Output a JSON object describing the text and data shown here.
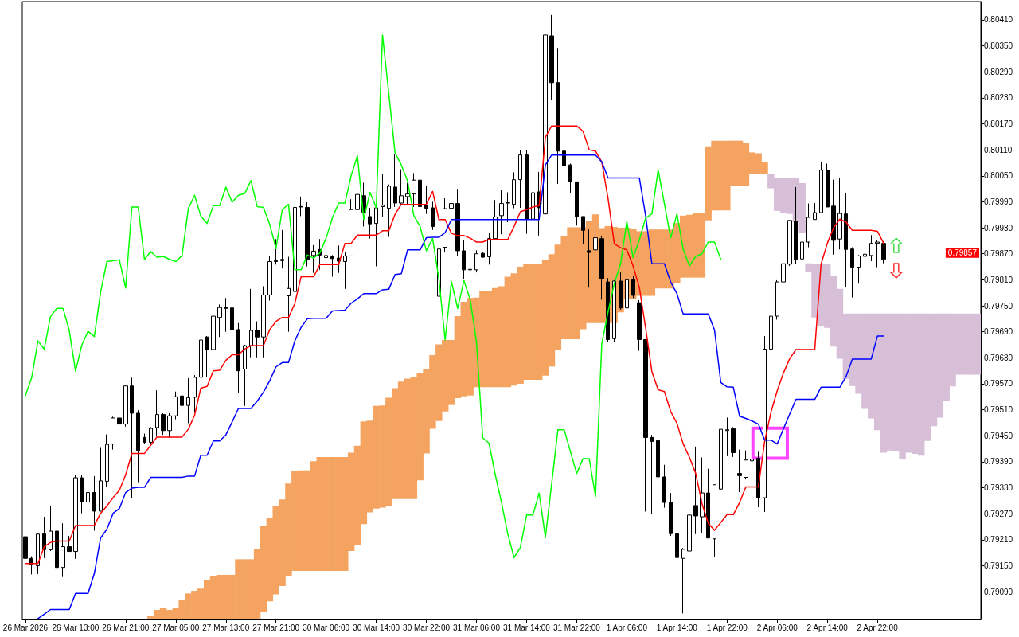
{
  "chart_data": {
    "type": "candlestick",
    "categories": [
      "26 Mar 2026",
      null,
      null,
      null,
      null,
      null,
      null,
      null,
      "26 Mar 13:00",
      null,
      null,
      null,
      null,
      null,
      null,
      null,
      "26 Mar 21:00",
      null,
      null,
      null,
      null,
      null,
      null,
      null,
      "27 Mar 05:00",
      null,
      null,
      null,
      null,
      null,
      null,
      null,
      "27 Mar 13:00",
      null,
      null,
      null,
      null,
      null,
      null,
      null,
      "27 Mar 21:00",
      null,
      null,
      null,
      null,
      null,
      null,
      null,
      "30 Mar 06:00",
      null,
      null,
      null,
      null,
      null,
      null,
      null,
      "30 Mar 14:00",
      null,
      null,
      null,
      null,
      null,
      null,
      null,
      "30 Mar 22:00",
      null,
      null,
      null,
      null,
      null,
      null,
      null,
      "31 Mar 06:00",
      null,
      null,
      null,
      null,
      null,
      null,
      null,
      "31 Mar 14:00",
      null,
      null,
      null,
      null,
      null,
      null,
      null,
      "31 Mar 22:00",
      null,
      null,
      null,
      null,
      null,
      null,
      null,
      "1 Apr 06:00",
      null,
      null,
      null,
      null,
      null,
      null,
      null,
      "1 Apr 14:00",
      null,
      null,
      null,
      null,
      null,
      null,
      null,
      "1 Apr 22:00",
      null,
      null,
      null,
      null,
      null,
      null,
      null,
      "2 Apr 06:00",
      null,
      null,
      null,
      null,
      null,
      null,
      null,
      "2 Apr 14:00",
      null,
      null,
      null,
      null,
      null,
      null,
      null,
      "2 Apr 22:00",
      null,
      null,
      null,
      null,
      null,
      null,
      null,
      null,
      null,
      null,
      null,
      null,
      null,
      null,
      null,
      null
    ],
    "ohlc": [
      [
        0.79217,
        0.7922,
        0.79158,
        0.79167
      ],
      [
        0.79167,
        0.79172,
        0.7913,
        0.79152
      ],
      [
        0.7915,
        0.79224,
        0.79131,
        0.79223
      ],
      [
        0.79224,
        0.79263,
        0.79168,
        0.79187
      ],
      [
        0.79187,
        0.79287,
        0.79184,
        0.7923
      ],
      [
        0.7923,
        0.79274,
        0.79143,
        0.79146
      ],
      [
        0.79146,
        0.79248,
        0.79124,
        0.79194
      ],
      [
        0.79194,
        0.79219,
        0.79183,
        0.79183
      ],
      [
        0.79183,
        0.7936,
        0.79166,
        0.79353
      ],
      [
        0.79353,
        0.7936,
        0.79271,
        0.79297
      ],
      [
        0.79297,
        0.79355,
        0.79271,
        0.79319
      ],
      [
        0.79319,
        0.79357,
        0.79231,
        0.79276
      ],
      [
        0.79276,
        0.79422,
        0.79276,
        0.79346
      ],
      [
        0.79345,
        0.79453,
        0.79333,
        0.7943
      ],
      [
        0.79431,
        0.79494,
        0.79418,
        0.79491
      ],
      [
        0.79491,
        0.79519,
        0.79465,
        0.79477
      ],
      [
        0.79477,
        0.79565,
        0.79471,
        0.79565
      ],
      [
        0.79565,
        0.79584,
        0.79306,
        0.79502
      ],
      [
        0.79502,
        0.79509,
        0.79343,
        0.79416
      ],
      [
        0.79446,
        0.79455,
        0.79431,
        0.79435
      ],
      [
        0.79435,
        0.7947,
        0.79431,
        0.79467
      ],
      [
        0.79469,
        0.79555,
        0.79448,
        0.79499
      ],
      [
        0.79499,
        0.79502,
        0.79452,
        0.79462
      ],
      [
        0.79462,
        0.79502,
        0.79445,
        0.79496
      ],
      [
        0.79496,
        0.79552,
        0.79488,
        0.7954
      ],
      [
        0.79542,
        0.79562,
        0.79509,
        0.7952
      ],
      [
        0.7952,
        0.79583,
        0.79479,
        0.79538
      ],
      [
        0.79539,
        0.7959,
        0.79504,
        0.79585
      ],
      [
        0.79585,
        0.7969,
        0.79585,
        0.79671
      ],
      [
        0.79678,
        0.7968,
        0.79586,
        0.79648
      ],
      [
        0.79649,
        0.79753,
        0.79624,
        0.79726
      ],
      [
        0.79723,
        0.79753,
        0.79678,
        0.79746
      ],
      [
        0.79747,
        0.79768,
        0.7969,
        0.79744
      ],
      [
        0.79745,
        0.79794,
        0.79676,
        0.79695
      ],
      [
        0.79695,
        0.7971,
        0.79549,
        0.796
      ],
      [
        0.79604,
        0.7966,
        0.79519,
        0.79658
      ],
      [
        0.79658,
        0.79789,
        0.79631,
        0.79693
      ],
      [
        0.79693,
        0.79714,
        0.79631,
        0.79678
      ],
      [
        0.79678,
        0.79795,
        0.79631,
        0.79775
      ],
      [
        0.79775,
        0.79865,
        0.79762,
        0.79852
      ],
      [
        0.79854,
        0.79904,
        0.79845,
        0.79852
      ],
      [
        0.79854,
        0.79925,
        0.79836,
        0.79857
      ],
      [
        0.79773,
        0.79863,
        0.7969,
        0.7979
      ],
      [
        0.79783,
        0.79991,
        0.79783,
        0.79977
      ],
      [
        0.79979,
        0.80002,
        0.79957,
        0.79978
      ],
      [
        0.79977,
        0.79989,
        0.79841,
        0.79857
      ],
      [
        0.79866,
        0.7989,
        0.79826,
        0.79876
      ],
      [
        0.7988,
        0.79904,
        0.79833,
        0.79867
      ],
      [
        0.79861,
        0.79869,
        0.79815,
        0.79866
      ],
      [
        0.79863,
        0.79867,
        0.79817,
        0.79859
      ],
      [
        0.7986,
        0.79889,
        0.79826,
        0.79853
      ],
      [
        0.79852,
        0.79874,
        0.79789,
        0.79865
      ],
      [
        0.79865,
        0.79996,
        0.79865,
        0.79972
      ],
      [
        0.79972,
        0.80015,
        0.79949,
        0.80007
      ],
      [
        0.80004,
        0.80034,
        0.79933,
        0.79966
      ],
      [
        0.79956,
        0.79976,
        0.79905,
        0.79939
      ],
      [
        0.7994,
        0.79976,
        0.79841,
        0.79976
      ],
      [
        0.79979,
        0.80054,
        0.79954,
        0.79982
      ],
      [
        0.79975,
        0.8003,
        0.79909,
        0.80026
      ],
      [
        0.80024,
        0.80101,
        0.79978,
        0.79987
      ],
      [
        0.79987,
        0.80065,
        0.79982,
        0.80004
      ],
      [
        0.80002,
        0.80034,
        0.79982,
        0.80008
      ],
      [
        0.80008,
        0.80056,
        0.79978,
        0.8004
      ],
      [
        0.8004,
        0.80044,
        0.79941,
        0.79979
      ],
      [
        0.79982,
        0.80026,
        0.79962,
        0.79975
      ],
      [
        0.79976,
        0.7999,
        0.79925,
        0.79933
      ],
      [
        0.79772,
        0.79885,
        0.79772,
        0.79881
      ],
      [
        0.79885,
        0.79998,
        0.79873,
        0.79974
      ],
      [
        0.79975,
        0.80006,
        0.79971,
        0.79986
      ],
      [
        0.79986,
        0.8002,
        0.79864,
        0.79877
      ],
      [
        0.79877,
        0.79901,
        0.79811,
        0.79833
      ],
      [
        0.79834,
        0.79861,
        0.7982,
        0.79833
      ],
      [
        0.79833,
        0.79878,
        0.79827,
        0.7987
      ],
      [
        0.79871,
        0.79873,
        0.79861,
        0.79862
      ],
      [
        0.79863,
        0.79917,
        0.79845,
        0.79905
      ],
      [
        0.79905,
        0.79994,
        0.79901,
        0.79955
      ],
      [
        0.79958,
        0.80018,
        0.79915,
        0.79986
      ],
      [
        0.79987,
        0.80012,
        0.79943,
        0.79988
      ],
      [
        0.79984,
        0.80058,
        0.79975,
        0.80041
      ],
      [
        0.80041,
        0.8011,
        0.79976,
        0.80098
      ],
      [
        0.80098,
        0.8011,
        0.79916,
        0.7995
      ],
      [
        0.7995,
        0.80011,
        0.79921,
        0.80011
      ],
      [
        0.80013,
        0.80059,
        0.79912,
        0.79976
      ],
      [
        0.79962,
        0.80375,
        0.79935,
        0.80375
      ],
      [
        0.80373,
        0.80421,
        0.80225,
        0.80265
      ],
      [
        0.80265,
        0.80345,
        0.80031,
        0.80107
      ],
      [
        0.80107,
        0.80107,
        0.79995,
        0.80073
      ],
      [
        0.80075,
        0.80078,
        0.80009,
        0.80036
      ],
      [
        0.80036,
        0.80036,
        0.79935,
        0.79956
      ],
      [
        0.79956,
        0.79956,
        0.79893,
        0.79924
      ],
      [
        0.79877,
        0.79926,
        0.79792,
        0.79873
      ],
      [
        0.79879,
        0.79921,
        0.79866,
        0.79907
      ],
      [
        0.79905,
        0.79912,
        0.79764,
        0.79812
      ],
      [
        0.79805,
        0.79814,
        0.79667,
        0.79672
      ],
      [
        0.79674,
        0.79809,
        0.79667,
        0.79807
      ],
      [
        0.79807,
        0.79827,
        0.79741,
        0.79745
      ],
      [
        0.79745,
        0.79824,
        0.79741,
        0.7981
      ],
      [
        0.7981,
        0.79818,
        0.79768,
        0.79774
      ],
      [
        0.79757,
        0.79763,
        0.79646,
        0.79672
      ],
      [
        0.79672,
        0.79672,
        0.79275,
        0.79446
      ],
      [
        0.79446,
        0.79452,
        0.7927,
        0.79437
      ],
      [
        0.79439,
        0.79443,
        0.79284,
        0.79355
      ],
      [
        0.79355,
        0.79383,
        0.79284,
        0.79296
      ],
      [
        0.79296,
        0.79318,
        0.79219,
        0.79224
      ],
      [
        0.79224,
        0.79224,
        0.79157,
        0.79169
      ],
      [
        0.79167,
        0.79191,
        0.7904,
        0.79188
      ],
      [
        0.79184,
        0.79316,
        0.79103,
        0.79267
      ],
      [
        0.79289,
        0.79425,
        0.79223,
        0.79265
      ],
      [
        0.79263,
        0.794,
        0.79226,
        0.79318
      ],
      [
        0.79318,
        0.79374,
        0.79214,
        0.79214
      ],
      [
        0.79212,
        0.79337,
        0.7917,
        0.79337
      ],
      [
        0.79327,
        0.79465,
        0.79326,
        0.79465
      ],
      [
        0.79462,
        0.79492,
        0.79403,
        0.79464
      ],
      [
        0.79466,
        0.7947,
        0.79401,
        0.79411
      ],
      [
        0.79363,
        0.79418,
        0.7932,
        0.79358
      ],
      [
        0.79354,
        0.79416,
        0.79349,
        0.79394
      ],
      [
        0.79392,
        0.794,
        0.79361,
        0.79396
      ],
      [
        0.79398,
        0.79413,
        0.79285,
        0.79307
      ],
      [
        0.79307,
        0.7968,
        0.79274,
        0.7965
      ],
      [
        0.7965,
        0.79739,
        0.79621,
        0.79726
      ],
      [
        0.79726,
        0.79809,
        0.79718,
        0.79805
      ],
      [
        0.79805,
        0.7986,
        0.79782,
        0.79847
      ],
      [
        0.79846,
        0.79947,
        0.79842,
        0.79947
      ],
      [
        0.79945,
        0.80024,
        0.79846,
        0.79857
      ],
      [
        0.79858,
        0.80004,
        0.79838,
        0.79897
      ],
      [
        0.79897,
        0.79986,
        0.79885,
        0.79954
      ],
      [
        0.79949,
        0.79987,
        0.79949,
        0.79965
      ],
      [
        0.79965,
        0.80081,
        0.79965,
        0.80063
      ],
      [
        0.80063,
        0.80078,
        0.79978,
        0.79978
      ],
      [
        0.7998,
        0.80041,
        0.79868,
        0.79901
      ],
      [
        0.79904,
        0.80044,
        0.7988,
        0.79963
      ],
      [
        0.79962,
        0.80011,
        0.79794,
        0.7988
      ],
      [
        0.79881,
        0.79885,
        0.79769,
        0.79839
      ],
      [
        0.79839,
        0.79867,
        0.79801,
        0.79865
      ],
      [
        0.79864,
        0.79876,
        0.7979,
        0.79869
      ],
      [
        0.79866,
        0.79913,
        0.79853,
        0.79894
      ],
      [
        0.79894,
        0.79902,
        0.79839,
        0.79897
      ],
      [
        0.79894,
        0.79899,
        0.79848,
        0.79857
      ],
      null,
      null,
      null,
      null,
      null,
      null,
      null,
      null,
      null,
      null,
      null,
      null,
      null,
      null,
      null
    ],
    "series": [
      {
        "type": "line",
        "color": "#ff0000",
        "values": [
          0.79155,
          0.79155,
          0.79155,
          0.79194,
          0.79204,
          0.79207,
          0.79207,
          0.79207,
          0.79243,
          0.79243,
          0.79243,
          0.79243,
          0.79271,
          0.79288,
          0.79307,
          0.79324,
          0.7936,
          0.79409,
          0.79409,
          0.79409,
          0.79428,
          0.79447,
          0.79447,
          0.79447,
          0.79447,
          0.79447,
          0.79465,
          0.79497,
          0.7956,
          0.79564,
          0.796,
          0.79601,
          0.79624,
          0.79637,
          0.79637,
          0.7965,
          0.79658,
          0.79658,
          0.79658,
          0.79695,
          0.79714,
          0.79723,
          0.79723,
          0.79755,
          0.79817,
          0.79817,
          0.79817,
          0.79845,
          0.79845,
          0.79845,
          0.79845,
          0.79894,
          0.79894,
          0.79913,
          0.79913,
          0.79913,
          0.79913,
          0.79923,
          0.79923,
          0.79961,
          0.79984,
          0.79984,
          0.79984,
          0.79984,
          0.79984,
          0.80014,
          0.79949,
          0.79949,
          0.79917,
          0.79912,
          0.79912,
          0.79906,
          0.79897,
          0.79897,
          0.79903,
          0.79903,
          0.79903,
          0.79903,
          0.79933,
          0.79967,
          0.79972,
          0.79978,
          0.79981,
          0.80139,
          0.80165,
          0.80165,
          0.80165,
          0.80165,
          0.80165,
          0.80153,
          0.8011,
          0.80107,
          0.80082,
          0.79998,
          0.79893,
          0.79884,
          0.79879,
          0.79842,
          0.79792,
          0.79699,
          0.79598,
          0.79556,
          0.79552,
          0.79506,
          0.79479,
          0.79431,
          0.794,
          0.79363,
          0.79293,
          0.79248,
          0.79232,
          0.7925,
          0.79268,
          0.79268,
          0.79296,
          0.79332,
          0.79332,
          0.79332,
          0.79437,
          0.79504,
          0.79554,
          0.79595,
          0.79628,
          0.79649,
          0.79649,
          0.79649,
          0.79649,
          0.79846,
          0.79894,
          0.7993,
          0.7995,
          0.79943,
          0.79924,
          0.79924,
          0.79924,
          0.79924,
          0.79922,
          0.79894,
          null,
          null,
          null,
          null,
          null,
          null,
          null,
          null,
          null,
          null,
          null,
          null,
          null,
          null,
          null
        ]
      },
      {
        "type": "line",
        "color": "#0000ff",
        "values": [
          null,
          null,
          0.79028,
          0.79038,
          0.79049,
          0.79049,
          0.79049,
          0.79049,
          0.79086,
          0.79086,
          0.79086,
          0.79132,
          0.79214,
          0.79234,
          0.79271,
          0.79282,
          0.79319,
          0.79329,
          0.79331,
          0.79331,
          0.79354,
          0.79354,
          0.79354,
          0.79354,
          0.79354,
          0.79354,
          0.79357,
          0.79357,
          0.79405,
          0.79405,
          0.79438,
          0.79438,
          0.79452,
          0.79482,
          0.79513,
          0.79513,
          0.79513,
          0.7953,
          0.79551,
          0.79577,
          0.79609,
          0.79619,
          0.79619,
          0.79669,
          0.797,
          0.7972,
          0.79721,
          0.79721,
          0.79721,
          0.79738,
          0.79739,
          0.7974,
          0.79756,
          0.79766,
          0.79778,
          0.79778,
          0.79778,
          0.79787,
          0.79788,
          0.79822,
          0.79824,
          0.79879,
          0.79879,
          0.79879,
          0.79907,
          0.79908,
          0.79908,
          0.79919,
          0.79949,
          0.79949,
          0.79949,
          0.79949,
          0.79949,
          0.79949,
          0.79949,
          0.79949,
          0.79949,
          0.79949,
          0.79949,
          0.79949,
          0.79949,
          0.79949,
          0.79949,
          0.80075,
          0.80098,
          0.80098,
          0.80098,
          0.80098,
          0.80098,
          0.80098,
          0.80098,
          0.80098,
          0.80082,
          0.80045,
          0.80045,
          0.80045,
          0.80045,
          0.80045,
          0.80045,
          0.79958,
          0.79847,
          0.79847,
          0.79847,
          0.79805,
          0.79778,
          0.79731,
          0.79731,
          0.79731,
          0.79731,
          0.79731,
          0.79694,
          0.79573,
          0.79563,
          0.79562,
          0.79495,
          0.7949,
          0.79484,
          0.79477,
          0.7944,
          0.7944,
          0.79431,
          0.79466,
          0.795,
          0.79534,
          0.79534,
          0.79534,
          0.79534,
          0.79562,
          0.79562,
          0.79562,
          0.79562,
          0.79587,
          0.79627,
          0.79627,
          0.79627,
          0.79627,
          0.7968,
          0.7968,
          null,
          null,
          null,
          null,
          null,
          null,
          null,
          null,
          null,
          null,
          null,
          null,
          null,
          null,
          null
        ]
      },
      {
        "type": "line",
        "color": "#00ff00",
        "values": [
          0.79543,
          0.79584,
          0.79669,
          0.7965,
          0.79725,
          0.79744,
          0.79744,
          0.79693,
          0.79599,
          0.79659,
          0.79691,
          0.79679,
          0.79781,
          0.79852,
          0.79854,
          0.79856,
          0.79791,
          0.79978,
          0.79978,
          0.79857,
          0.79875,
          0.79862,
          0.79864,
          0.79857,
          0.79852,
          0.79866,
          0.79974,
          0.80005,
          0.79957,
          0.7994,
          0.79981,
          0.79981,
          0.80024,
          0.79989,
          0.80005,
          0.80009,
          0.80039,
          0.79979,
          0.79977,
          0.79938,
          0.79882,
          0.79972,
          0.79984,
          0.79833,
          0.79833,
          0.79867,
          0.7986,
          0.79872,
          0.79906,
          0.79953,
          0.79987,
          0.79987,
          0.80051,
          0.80096,
          0.79949,
          0.80012,
          0.79976,
          0.80375,
          0.8024,
          0.80103,
          0.80075,
          0.80038,
          0.79958,
          0.79933,
          0.79877,
          0.79905,
          0.79812,
          0.79671,
          0.79806,
          0.79744,
          0.79808,
          0.79764,
          0.79667,
          0.79445,
          0.79433,
          0.7936,
          0.79296,
          0.79223,
          0.79169,
          0.79192,
          0.79267,
          0.79267,
          0.79318,
          0.79215,
          0.79339,
          0.79464,
          0.79464,
          0.79413,
          0.79363,
          0.79397,
          0.79397,
          0.7931,
          0.79662,
          0.79736,
          0.79801,
          0.79847,
          0.79944,
          0.79861,
          0.79902,
          0.79953,
          0.79962,
          0.80064,
          0.79985,
          0.79907,
          0.79962,
          0.7988,
          0.79842,
          0.79864,
          0.7987,
          0.79897,
          0.79897,
          0.79857,
          null,
          null,
          null,
          null,
          null,
          null,
          null,
          null,
          null,
          null,
          null,
          null,
          null,
          null,
          null,
          null,
          null,
          null,
          null,
          null,
          null,
          null,
          null,
          null,
          null,
          null,
          null,
          null,
          null,
          null,
          null,
          null,
          null,
          null,
          null,
          null,
          null,
          null,
          null,
          null,
          null
        ]
      },
      {
        "type": "bar",
        "color": "#f4a460",
        "base": [
          null,
          null,
          null,
          null,
          null,
          null,
          null,
          null,
          null,
          null,
          null,
          null,
          null,
          null,
          null,
          null,
          null,
          null,
          null,
          null,
          0.79026,
          0.79026,
          0.79026,
          0.79026,
          0.79026,
          0.79026,
          0.79026,
          0.79026,
          0.79026,
          0.79026,
          0.79026,
          0.79026,
          0.79026,
          0.79026,
          0.79026,
          0.79026,
          0.79026,
          0.79026,
          0.79044,
          0.79068,
          0.79084,
          0.79103,
          0.79127,
          0.79138,
          0.79138,
          0.79138,
          0.79138,
          0.79138,
          0.79138,
          0.79138,
          0.79138,
          0.79138,
          0.79184,
          0.79198,
          0.79246,
          0.79273,
          0.79282,
          0.79284,
          0.79288,
          0.79304,
          0.79304,
          0.79304,
          0.79304,
          0.79347,
          0.79409,
          0.79466,
          0.79484,
          0.79506,
          0.79521,
          0.79537,
          0.79541,
          0.79543,
          0.79562,
          0.79562,
          0.79562,
          0.79562,
          0.79562,
          0.79562,
          0.79566,
          0.7957,
          0.79579,
          0.79579,
          0.79579,
          0.79589,
          0.7961,
          0.79649,
          0.79673,
          0.79673,
          0.79673,
          0.79696,
          0.7971,
          0.7971,
          0.7971,
          0.7971,
          0.7971,
          0.79735,
          0.79766,
          0.79766,
          0.79773,
          0.79773,
          0.79773,
          0.7979,
          0.7979,
          0.7979,
          0.79803,
          0.79815,
          0.79815,
          0.79815,
          0.79815,
          0.79947,
          0.7997,
          0.7997,
          0.7997,
          0.80026,
          0.80026,
          0.80026,
          0.80055,
          0.80055,
          0.80055,
          null,
          null,
          null,
          null,
          null,
          null,
          null,
          null,
          null,
          null,
          null,
          null,
          null,
          null,
          null,
          null,
          null,
          null,
          null,
          null,
          null,
          null,
          null,
          null,
          null,
          null,
          null,
          null,
          null,
          null,
          null,
          null,
          null,
          null
        ],
        "values": [
          null,
          null,
          null,
          null,
          null,
          null,
          null,
          null,
          null,
          null,
          null,
          null,
          null,
          null,
          null,
          null,
          null,
          null,
          null,
          null,
          9e-05,
          0.00022,
          0.00026,
          0.00022,
          0.00026,
          0.00044,
          0.0006,
          0.00066,
          0.00071,
          0.0009,
          0.00101,
          0.00103,
          0.00103,
          0.00103,
          0.00139,
          0.00139,
          0.00139,
          0.00162,
          0.00199,
          0.00193,
          0.00205,
          0.002,
          0.00213,
          0.00231,
          0.00232,
          0.00232,
          0.00253,
          0.00263,
          0.00263,
          0.00263,
          0.00263,
          0.00263,
          0.00227,
          0.00229,
          0.00237,
          0.00212,
          0.00237,
          0.00236,
          0.0025,
          0.00256,
          0.00271,
          0.00278,
          0.00282,
          0.00247,
          0.00195,
          0.0017,
          0.00177,
          0.00165,
          0.0015,
          0.00189,
          0.00218,
          0.00225,
          0.00207,
          0.00221,
          0.00221,
          0.00229,
          0.00233,
          0.00255,
          0.00259,
          0.0027,
          0.00267,
          0.00267,
          0.00267,
          0.00266,
          0.00259,
          0.00242,
          0.00237,
          0.00258,
          0.00258,
          0.00235,
          0.00236,
          0.00251,
          0.00219,
          0.00224,
          0.00222,
          0.00195,
          0.00164,
          0.00161,
          0.00149,
          0.00149,
          0.00153,
          0.00136,
          0.00136,
          0.00136,
          0.00138,
          0.00143,
          0.00145,
          0.00148,
          0.0015,
          0.00171,
          0.00161,
          0.00161,
          0.00161,
          0.00105,
          0.00105,
          0.001,
          0.00049,
          0.00047,
          0.00027,
          null,
          null,
          null,
          null,
          null,
          null,
          null,
          null,
          null,
          null,
          null,
          null,
          null,
          null,
          null,
          null,
          null,
          null,
          null,
          null,
          null,
          null,
          null,
          null,
          null,
          null,
          null,
          null,
          null,
          null,
          null,
          null,
          null,
          null
        ]
      },
      {
        "type": "bar",
        "color": "#d8bfd8",
        "base": [
          null,
          null,
          null,
          null,
          null,
          null,
          null,
          null,
          null,
          null,
          null,
          null,
          null,
          null,
          null,
          null,
          null,
          null,
          null,
          null,
          null,
          null,
          null,
          null,
          null,
          null,
          null,
          null,
          null,
          null,
          null,
          null,
          null,
          null,
          null,
          null,
          null,
          null,
          null,
          null,
          null,
          null,
          null,
          null,
          null,
          null,
          null,
          null,
          null,
          null,
          null,
          null,
          null,
          null,
          null,
          null,
          null,
          null,
          null,
          null,
          null,
          null,
          null,
          null,
          null,
          null,
          null,
          null,
          null,
          null,
          null,
          null,
          null,
          null,
          null,
          null,
          null,
          null,
          null,
          null,
          null,
          null,
          null,
          null,
          null,
          null,
          null,
          null,
          null,
          null,
          null,
          null,
          null,
          null,
          null,
          null,
          null,
          null,
          null,
          null,
          null,
          null,
          null,
          null,
          null,
          null,
          null,
          null,
          null,
          null,
          null,
          null,
          null,
          null,
          null,
          null,
          null,
          null,
          null,
          0.80021,
          0.79969,
          0.79965,
          0.79962,
          0.79943,
          0.79919,
          0.79829,
          0.79723,
          0.79702,
          0.79699,
          0.79656,
          0.79628,
          0.79581,
          0.79565,
          0.79547,
          0.79512,
          0.7949,
          0.79463,
          0.79411,
          0.79416,
          0.79415,
          0.79396,
          0.79411,
          0.79408,
          0.79404,
          0.79438,
          0.79472,
          0.79492,
          0.7953,
          0.79564,
          0.79591,
          0.79591,
          0.79591,
          0.79591
        ],
        "values": [
          null,
          null,
          null,
          null,
          null,
          null,
          null,
          null,
          null,
          null,
          null,
          null,
          null,
          null,
          null,
          null,
          null,
          null,
          null,
          null,
          null,
          null,
          null,
          null,
          null,
          null,
          null,
          null,
          null,
          null,
          null,
          null,
          null,
          null,
          null,
          null,
          null,
          null,
          null,
          null,
          null,
          null,
          null,
          null,
          null,
          null,
          null,
          null,
          null,
          null,
          null,
          null,
          null,
          null,
          null,
          null,
          null,
          null,
          null,
          null,
          null,
          null,
          null,
          null,
          null,
          null,
          null,
          null,
          null,
          null,
          null,
          null,
          null,
          null,
          null,
          null,
          null,
          null,
          null,
          null,
          null,
          null,
          null,
          null,
          null,
          null,
          null,
          null,
          null,
          null,
          null,
          null,
          null,
          null,
          null,
          null,
          null,
          null,
          null,
          null,
          null,
          null,
          null,
          null,
          null,
          null,
          null,
          null,
          null,
          null,
          null,
          null,
          null,
          null,
          null,
          null,
          null,
          null,
          null,
          0.00034,
          0.00075,
          0.00079,
          0.00082,
          0.00101,
          0.00114,
          0.00019,
          0.00123,
          0.00144,
          0.00147,
          0.00164,
          0.00161,
          0.00151,
          0.00167,
          0.00185,
          0.0022,
          0.00242,
          0.00269,
          0.00321,
          0.00316,
          0.00317,
          0.00336,
          0.00321,
          0.00324,
          0.00328,
          0.00294,
          0.0026,
          0.0024,
          0.00202,
          0.00168,
          0.00141,
          0.00141,
          0.00141,
          0.00141
        ]
      }
    ],
    "ylim": [
      0.79026,
      0.80452
    ],
    "yticks": [
      {
        "value": 0.7909,
        "label": "0.79090"
      },
      {
        "value": 0.7915,
        "label": "0.79150"
      },
      {
        "value": 0.7921,
        "label": "0.79210"
      },
      {
        "value": 0.7927,
        "label": "0.79270"
      },
      {
        "value": 0.7933,
        "label": "0.79330"
      },
      {
        "value": 0.7939,
        "label": "0.79390"
      },
      {
        "value": 0.7945,
        "label": "0.79450"
      },
      {
        "value": 0.7951,
        "label": "0.79510"
      },
      {
        "value": 0.7957,
        "label": "0.79570"
      },
      {
        "value": 0.7963,
        "label": "0.79630"
      },
      {
        "value": 0.7969,
        "label": "0.79690"
      },
      {
        "value": 0.7975,
        "label": "0.79750"
      },
      {
        "value": 0.7981,
        "label": "0.79810"
      },
      {
        "value": 0.7987,
        "label": "0.79870"
      },
      {
        "value": 0.7993,
        "label": "0.79930"
      },
      {
        "value": 0.7999,
        "label": "0.79990"
      },
      {
        "value": 0.8005,
        "label": "0.80050"
      },
      {
        "value": 0.8011,
        "label": "0.80110"
      },
      {
        "value": 0.8017,
        "label": "0.80170"
      },
      {
        "value": 0.8023,
        "label": "0.80230"
      },
      {
        "value": 0.8029,
        "label": "0.80290"
      },
      {
        "value": 0.8035,
        "label": "0.80350"
      },
      {
        "value": 0.8041,
        "label": "0.80410"
      }
    ],
    "ref_lines": [
      {
        "axis": "y",
        "value": 0.79857,
        "label": "0.79857",
        "color": "#ff0000"
      }
    ],
    "marker": "none"
  }
}
